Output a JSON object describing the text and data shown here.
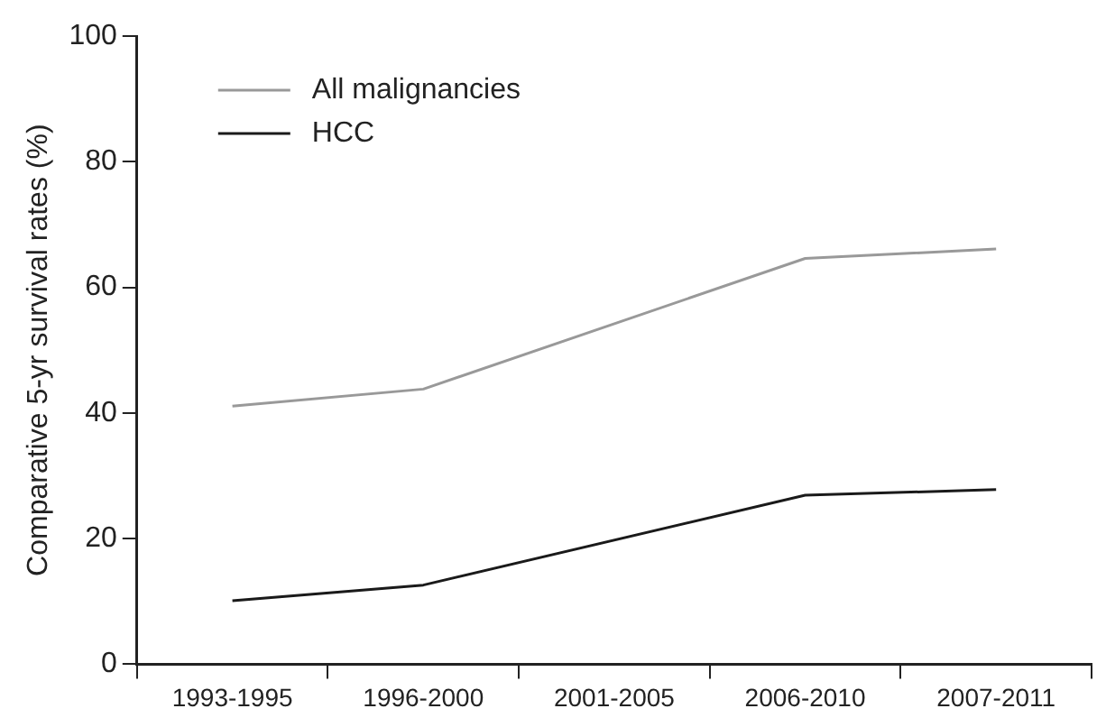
{
  "chart_data": {
    "type": "line",
    "ylabel": "Comparative 5-yr survival rates (%)",
    "categories": [
      "1993-1995",
      "1996-2000",
      "2001-2005",
      "2006-2010",
      "2007-2011"
    ],
    "series": [
      {
        "name": "All malignancies",
        "color": "#999999",
        "values": [
          41.1,
          43.8,
          null,
          64.6,
          66.1
        ]
      },
      {
        "name": "HCC",
        "color": "#1a1a1a",
        "values": [
          10.1,
          12.6,
          null,
          26.9,
          27.8
        ]
      }
    ],
    "ylim": [
      0,
      100
    ],
    "yticks": [
      0,
      20,
      40,
      60,
      80,
      100
    ],
    "grid": false,
    "legend": "top left",
    "marker": "none",
    "line_style": "solid"
  }
}
